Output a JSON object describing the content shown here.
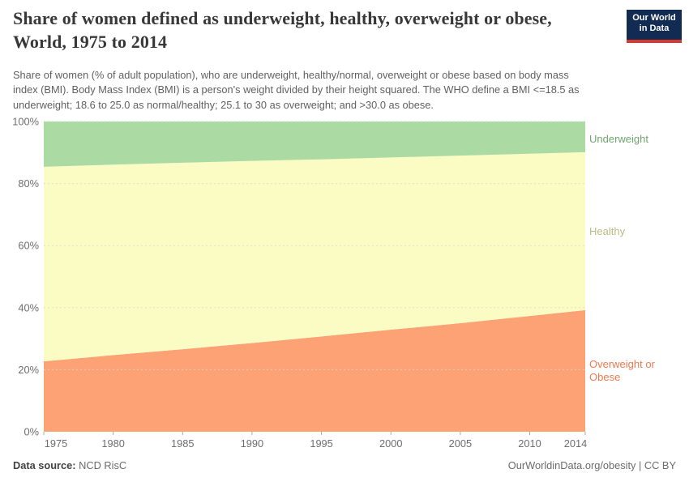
{
  "header": {
    "title_line1": "Share of women defined as underweight, healthy, overweight or obese,",
    "title_line2": "World, 1975 to 2014",
    "subtitle": "Share of women (% of adult population), who are underweight, healthy/normal, overweight or obese based on body mass index (BMI). Body Mass Index (BMI) is a person's weight divided by their height squared. The WHO define a BMI <=18.5 as underweight; 18.6 to 25.0 as normal/healthy; 25.1 to 30 as overweight; and >30.0 as obese.",
    "logo": {
      "line1": "Our World",
      "line2": "in Data",
      "bg_color": "#122b52",
      "accent_color": "#d6382f"
    }
  },
  "chart_data": {
    "type": "area",
    "stacked": true,
    "title": "Share of women defined as underweight, healthy, overweight or obese, World, 1975 to 2014",
    "xlabel": "",
    "ylabel": "",
    "xlim": [
      1975,
      2014
    ],
    "ylim": [
      0,
      100
    ],
    "grid": "horizontal dashed",
    "legend_position": "right-of-plot",
    "x": [
      1975,
      1980,
      1985,
      1990,
      1995,
      2000,
      2005,
      2010,
      2014
    ],
    "series": [
      {
        "name": "Overweight or Obese",
        "color": "#fca274",
        "label_color": "#ec7950",
        "values": [
          22.7,
          24.7,
          26.6,
          28.6,
          30.7,
          32.9,
          35.0,
          37.3,
          39.2
        ]
      },
      {
        "name": "Healthy",
        "color": "#fbfcc4",
        "label_color": "#b8bd85",
        "values": [
          62.7,
          61.4,
          60.1,
          58.7,
          57.1,
          55.5,
          54.0,
          52.3,
          50.9
        ]
      },
      {
        "name": "Underweight",
        "color": "#abdba3",
        "label_color": "#71a571",
        "values": [
          14.6,
          13.9,
          13.3,
          12.7,
          12.2,
          11.6,
          11.0,
          10.4,
          9.9
        ]
      }
    ],
    "x_ticks": [
      "1975",
      "1980",
      "1985",
      "1990",
      "1995",
      "2000",
      "2005",
      "2010",
      "2014"
    ],
    "y_ticks": [
      "0%",
      "20%",
      "40%",
      "60%",
      "80%",
      "100%"
    ]
  },
  "footer": {
    "source_label": "Data source:",
    "source_value": "NCD RisC",
    "credit": "OurWorldinData.org/obesity | CC BY"
  }
}
